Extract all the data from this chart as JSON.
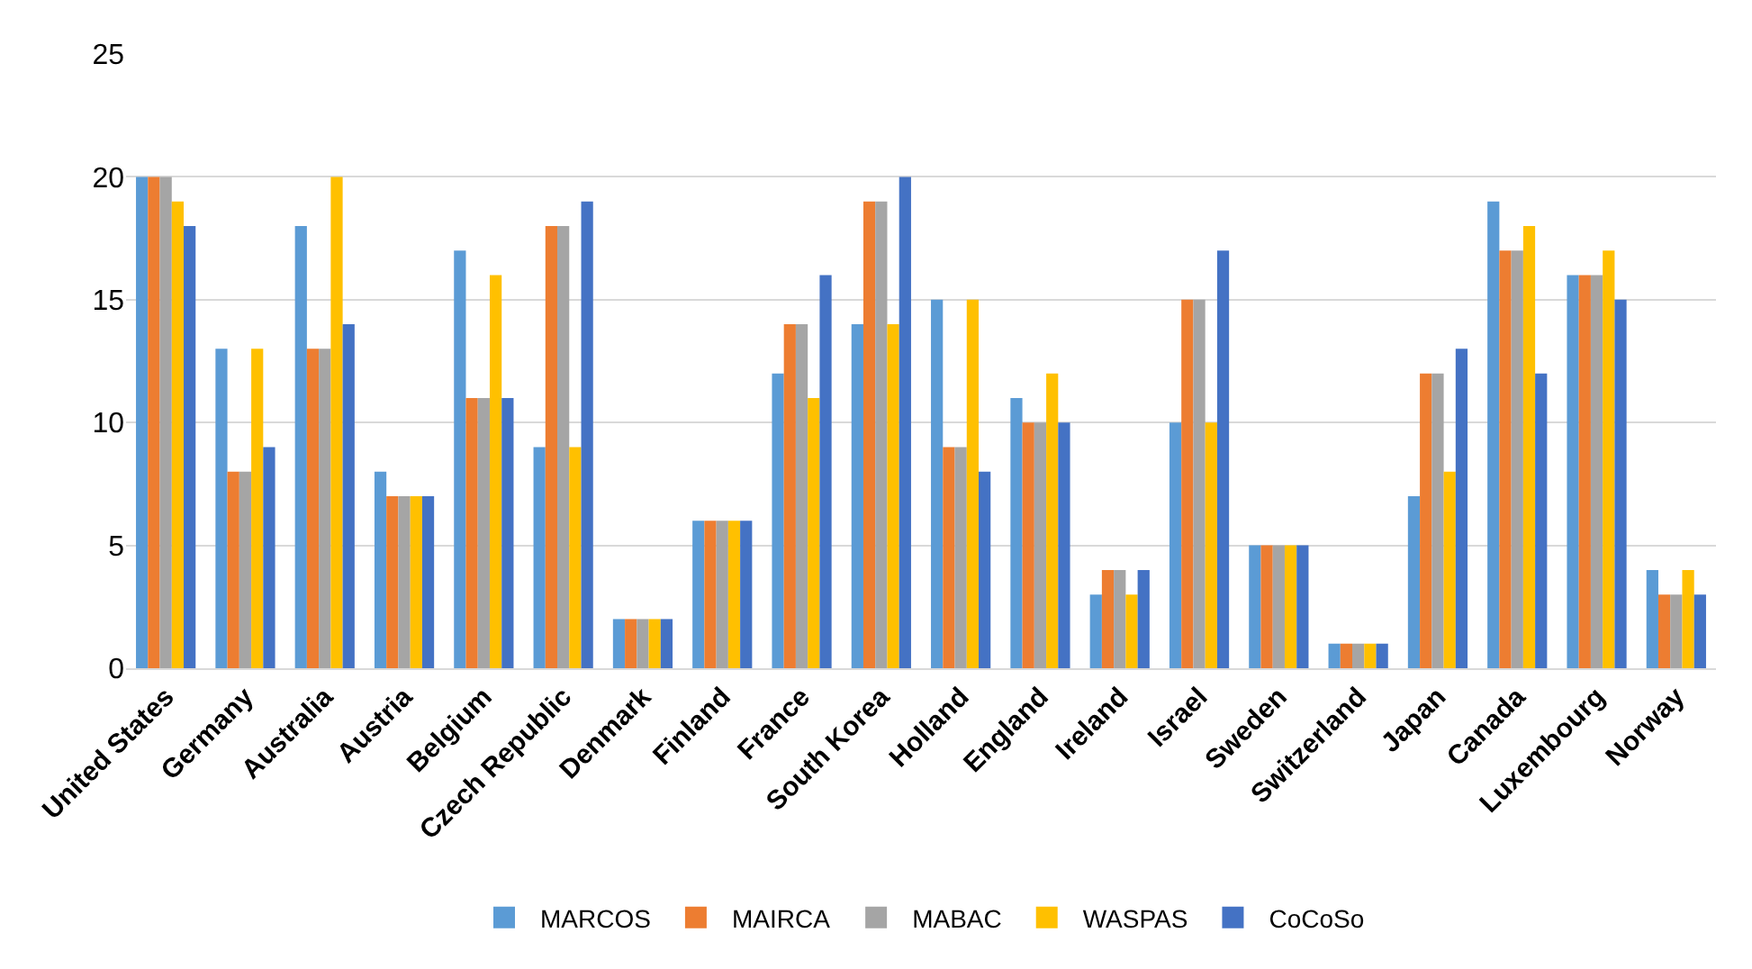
{
  "chart_data": {
    "type": "bar",
    "categories": [
      "United States",
      "Germany",
      "Australia",
      "Austria",
      "Belgium",
      "Czech Republic",
      "Denmark",
      "Finland",
      "France",
      "South Korea",
      "Holland",
      "England",
      "Ireland",
      "Israel",
      "Sweden",
      "Switzerland",
      "Japan",
      "Canada",
      "Luxembourg",
      "Norway"
    ],
    "series": [
      {
        "name": "MARCOS",
        "color": "#5b9bd5",
        "values": [
          20,
          13,
          18,
          8,
          17,
          9,
          2,
          6,
          12,
          14,
          15,
          11,
          3,
          10,
          5,
          1,
          7,
          19,
          16,
          4
        ]
      },
      {
        "name": "MAIRCA",
        "color": "#ed7d31",
        "values": [
          20,
          8,
          13,
          7,
          11,
          18,
          2,
          6,
          14,
          19,
          9,
          10,
          4,
          15,
          5,
          1,
          12,
          17,
          16,
          3
        ]
      },
      {
        "name": "MABAC",
        "color": "#a5a5a5",
        "values": [
          20,
          8,
          13,
          7,
          11,
          18,
          2,
          6,
          14,
          19,
          9,
          10,
          4,
          15,
          5,
          1,
          12,
          17,
          16,
          3
        ]
      },
      {
        "name": "WASPAS",
        "color": "#ffc000",
        "values": [
          19,
          13,
          20,
          7,
          16,
          9,
          2,
          6,
          11,
          14,
          15,
          12,
          3,
          10,
          5,
          1,
          8,
          18,
          17,
          4
        ]
      },
      {
        "name": "CoCoSo",
        "color": "#4472c4",
        "values": [
          18,
          9,
          14,
          7,
          11,
          19,
          2,
          6,
          16,
          20,
          8,
          10,
          4,
          17,
          5,
          1,
          13,
          12,
          15,
          3
        ]
      }
    ],
    "ylim": [
      0,
      25
    ],
    "yticks": [
      0,
      5,
      10,
      15,
      20,
      25
    ],
    "grid": "y",
    "legend": "bottom"
  }
}
